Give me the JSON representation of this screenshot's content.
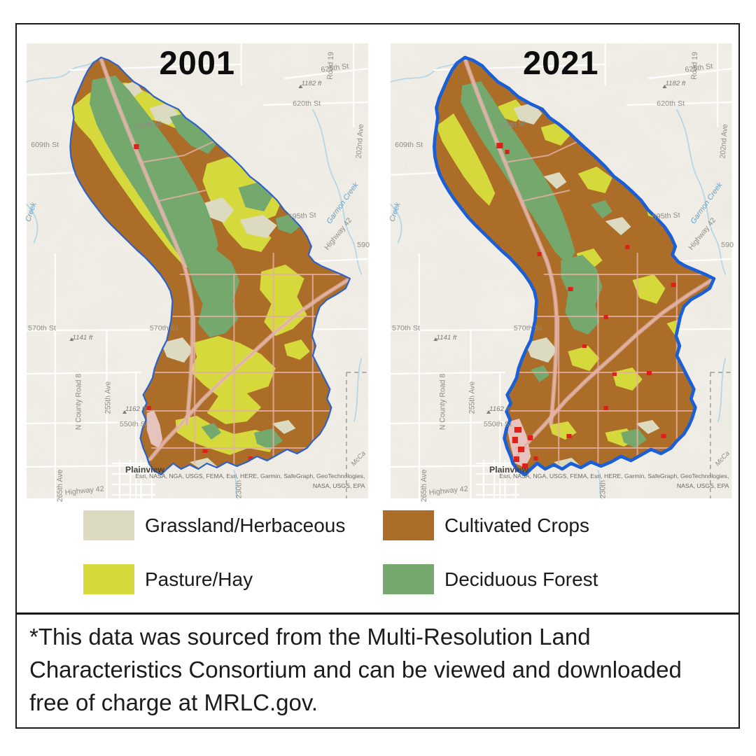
{
  "page": {
    "background": "#ffffff",
    "border_color": "#191919"
  },
  "maps": [
    {
      "year": "2001",
      "boundary_width": 2.2
    },
    {
      "year": "2021",
      "boundary_width": 4.6
    }
  ],
  "basemap": {
    "labels": [
      {
        "text": "624th St"
      },
      {
        "text": "625th St"
      },
      {
        "text": "620th St"
      },
      {
        "text": "1182 ft"
      },
      {
        "text": "609th St"
      },
      {
        "text": "595th St"
      },
      {
        "text": "Highway 42"
      },
      {
        "text": "590"
      },
      {
        "text": "570th St"
      },
      {
        "text": "570th St"
      },
      {
        "text": "1141 ft"
      },
      {
        "text": "N County Road 8"
      },
      {
        "text": "255th Ave"
      },
      {
        "text": "1162 ft"
      },
      {
        "text": "550th St"
      },
      {
        "text": "Plainview"
      },
      {
        "text": "265th Ave"
      },
      {
        "text": "Highway 42"
      },
      {
        "text": "202nd Ave"
      },
      {
        "text": "Road 19"
      },
      {
        "text": "Garmon Creek"
      },
      {
        "text": "Creek"
      },
      {
        "text": "230th"
      },
      {
        "text": "McCa"
      }
    ],
    "attribution": [
      "Esri, NASA, NGA, USGS, FEMA, Esri, HERE, Garmin, SafeGraph, GeoTechnologies,",
      "NASA, USGS, EPA"
    ]
  },
  "legend": {
    "items": [
      {
        "label": "Grassland/Herbaceous",
        "color": "#dcdbc2"
      },
      {
        "label": "Cultivated Crops",
        "color": "#ab6d28"
      },
      {
        "label": "Pasture/Hay",
        "color": "#d6d93c"
      },
      {
        "label": "Deciduous Forest",
        "color": "#74a86d"
      }
    ]
  },
  "footnote_lines": [
    "*This data was sourced from the Multi-Resolution Land",
    "Characteristics Consortium and can be viewed and downloaded",
    "free of charge at MRLC.gov."
  ],
  "colors": {
    "terrain_bg": "#f1efe8",
    "boundary_2001": "#2e62c8",
    "boundary_2021": "#1b5fd6",
    "developed_red": "#dd2019",
    "developed_low": "#e6c4bd",
    "road_pink": "#e4afa4",
    "road_white": "#ffffff",
    "water": "#aed5e6"
  }
}
